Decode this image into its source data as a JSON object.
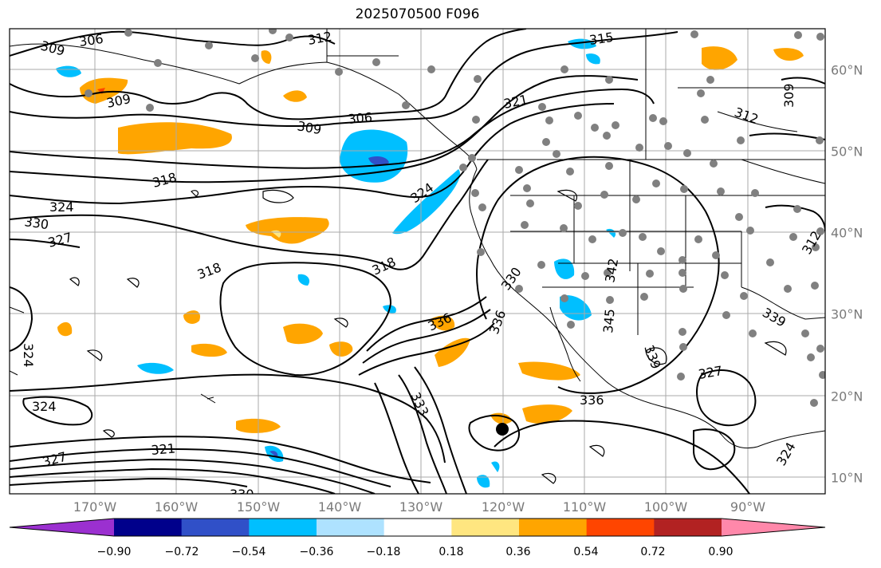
{
  "title": "2025070500 F096",
  "axes": {
    "lat_labels": [
      "60°N",
      "50°N",
      "40°N",
      "30°N",
      "20°N",
      "10°N"
    ],
    "lon_labels": [
      "170°W",
      "160°W",
      "150°W",
      "140°W",
      "130°W",
      "120°W",
      "110°W",
      "100°W",
      "90°W"
    ]
  },
  "contour_labels": [
    "306",
    "309",
    "312",
    "315",
    "309",
    "321",
    "312",
    "309",
    "306",
    "309",
    "318",
    "324",
    "330",
    "327",
    "318",
    "324",
    "318",
    "330",
    "342",
    "336",
    "345",
    "324",
    "336",
    "339",
    "327",
    "324",
    "321",
    "333",
    "336",
    "327",
    "324",
    "330",
    "312",
    "339"
  ],
  "colorbar": {
    "ticks": [
      "−0.90",
      "−0.72",
      "−0.54",
      "−0.36",
      "−0.18",
      "0.18",
      "0.36",
      "0.54",
      "0.72",
      "0.90"
    ],
    "colors": [
      "#9b30d0",
      "#00008b",
      "#3050c8",
      "#00bfff",
      "#aee2ff",
      "#ffffff",
      "#ffe680",
      "#ffa500",
      "#ff4500",
      "#b22222",
      "#ff88aa"
    ]
  },
  "colors": {
    "frame": "#000000",
    "grid": "#aaaaaa",
    "coast": "#000000",
    "contour": "#000000",
    "station": "#808080",
    "axis_label": "#7a7a7a"
  }
}
